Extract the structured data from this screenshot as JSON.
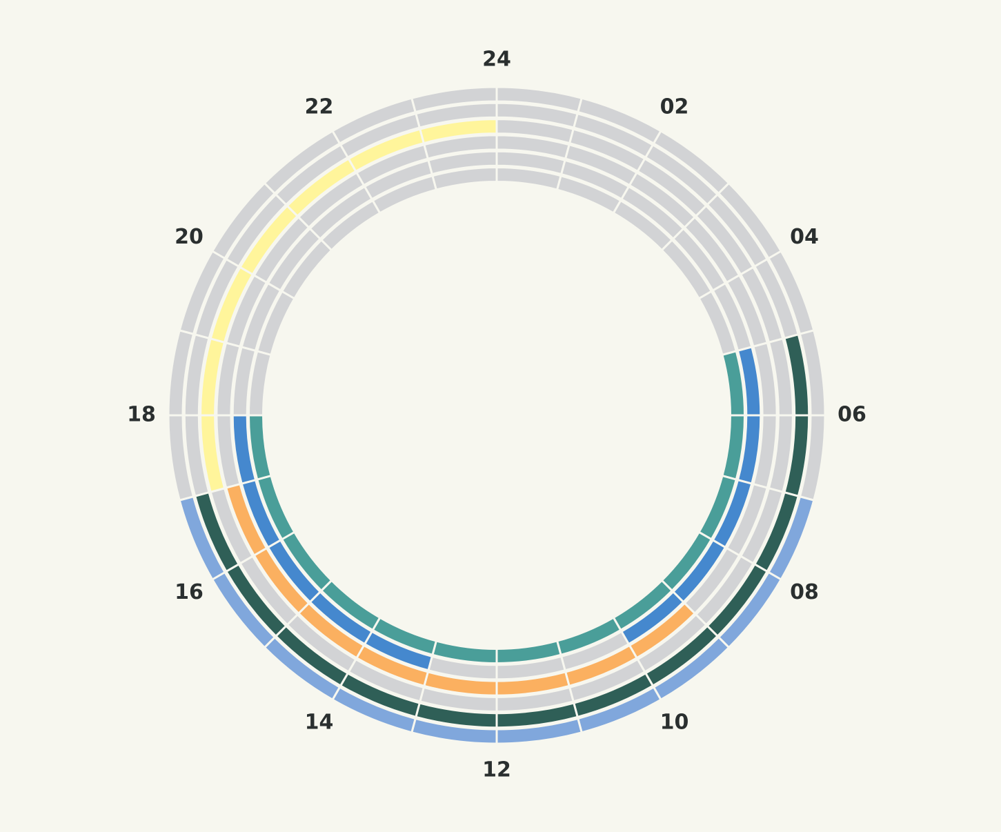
{
  "chart_data": {
    "type": "radial-clock",
    "hour_labels": [
      "24",
      "02",
      "04",
      "06",
      "08",
      "10",
      "12",
      "14",
      "16",
      "18",
      "20",
      "22"
    ],
    "base_color": "#d2d3d5",
    "rings": [
      {
        "color": "#80a7dc",
        "spans": [
          [
            7,
            17
          ]
        ]
      },
      {
        "color": "#2f5f57",
        "spans": [
          [
            5,
            17
          ]
        ]
      },
      {
        "color": "#fff59b",
        "spans": [
          [
            17,
            24
          ]
        ]
      },
      {
        "color": "#fbb060",
        "spans": [
          [
            9,
            17
          ]
        ]
      },
      {
        "color": "#4588ce",
        "spans": [
          [
            5,
            10
          ],
          [
            13,
            18
          ]
        ]
      },
      {
        "color": "#4a9e99",
        "spans": [
          [
            5,
            18
          ]
        ]
      }
    ]
  }
}
